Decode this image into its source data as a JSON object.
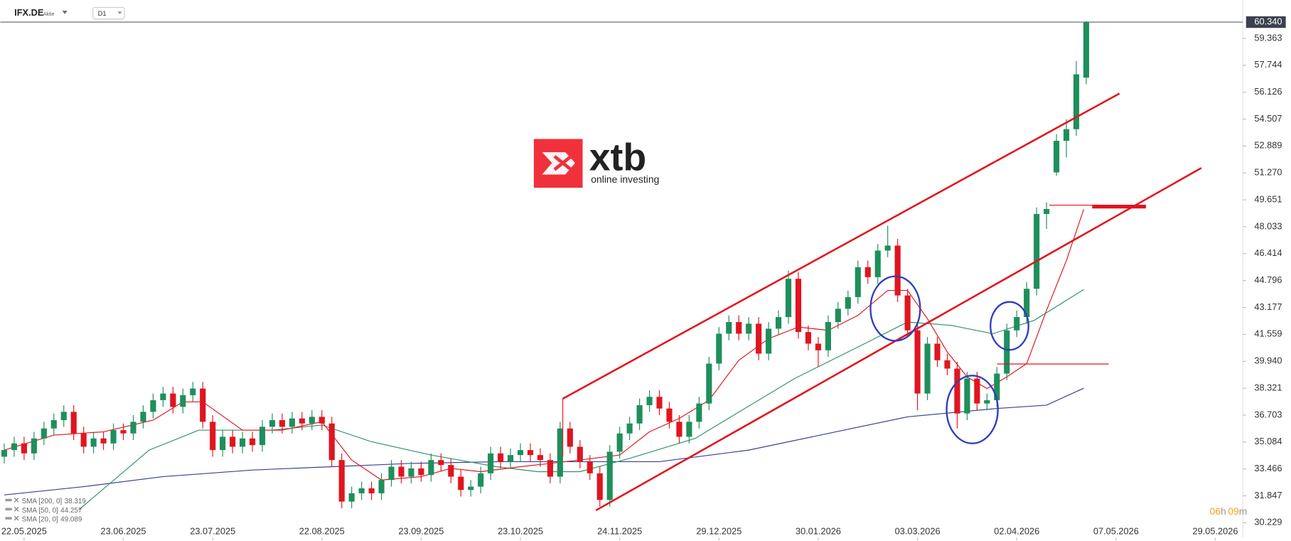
{
  "header": {
    "symbol": "IFX.DE",
    "asset_type": "Aktie",
    "interval": "D1"
  },
  "watermark": {
    "brand": "xtb",
    "tagline": "online investing"
  },
  "countdown": [
    "06",
    "h",
    "09",
    "m"
  ],
  "chart_data": {
    "type": "candlestick",
    "up_color": "#1e8f5c",
    "down_color": "#e0151f",
    "xlim": [
      -0.4,
      124.6
    ],
    "ylim": [
      29.33,
      61.67
    ],
    "xticks": [
      {
        "value": 2,
        "label": "22.05.2025"
      },
      {
        "value": 12,
        "label": "23.06.2025"
      },
      {
        "value": 21,
        "label": "23.07.2025"
      },
      {
        "value": 32,
        "label": "22.08.2025"
      },
      {
        "value": 42,
        "label": "23.09.2025"
      },
      {
        "value": 52,
        "label": "23.10.2025"
      },
      {
        "value": 62,
        "label": "24.11.2025"
      },
      {
        "value": 72,
        "label": "29.12.2025"
      },
      {
        "value": 82,
        "label": "30.01.2026"
      },
      {
        "value": 92,
        "label": "03.03.2026"
      },
      {
        "value": 102,
        "label": "02.04.2026"
      },
      {
        "value": 112,
        "label": "07.05.2026"
      },
      {
        "value": 122,
        "label": "29.05.2026"
      }
    ],
    "yticks": [
      30.229,
      31.847,
      33.466,
      35.084,
      36.703,
      38.321,
      {
        "value": 39.94,
        "label": "39.940"
      },
      41.559,
      43.177,
      44.796,
      46.414,
      48.033,
      49.651,
      {
        "value": 51.27,
        "label": "51.270"
      },
      52.889,
      54.507,
      56.126,
      57.744,
      59.363
    ],
    "last_price": {
      "value": 60.34,
      "label": "60.340"
    },
    "open": [
      34.2,
      34.6,
      35.0,
      34.4,
      35.3,
      35.9,
      36.4,
      36.9,
      35.6,
      34.8,
      35.3,
      35.0,
      35.8,
      35.6,
      36.3,
      36.9,
      37.6,
      38.0,
      37.2,
      37.9,
      38.3,
      36.3,
      34.6,
      35.4,
      34.8,
      35.3,
      34.9,
      36.0,
      36.4,
      36.0,
      36.5,
      36.2,
      36.6,
      36.2,
      34.0,
      31.5,
      32.0,
      32.3,
      32.0,
      32.8,
      33.6,
      33.0,
      33.5,
      33.1,
      34.0,
      33.7,
      33.0,
      32.2,
      32.4,
      33.2,
      34.4,
      33.9,
      34.3,
      34.6,
      34.3,
      34.0,
      33.0,
      35.9,
      34.8,
      33.9,
      33.2,
      31.6,
      34.5,
      35.6,
      36.2,
      37.3,
      37.8,
      37.1,
      36.3,
      35.4,
      36.3,
      37.4,
      39.8,
      41.6,
      42.3,
      41.6,
      42.2,
      40.4,
      41.9,
      42.6,
      44.9,
      41.7,
      41.0,
      40.6,
      42.3,
      43.1,
      43.8,
      45.6,
      45.0,
      46.6,
      46.9,
      43.9,
      41.8,
      38.0,
      41.0,
      40.0,
      39.5,
      36.8,
      38.9,
      37.4,
      37.6,
      39.2,
      41.8,
      42.6,
      44.3,
      48.8,
      51.3,
      53.2,
      53.9,
      57.0
    ],
    "high": [
      35.0,
      35.4,
      35.4,
      35.7,
      36.3,
      36.8,
      37.3,
      37.3,
      36.0,
      35.7,
      35.7,
      36.2,
      36.2,
      36.7,
      37.3,
      38.0,
      38.4,
      38.4,
      38.3,
      38.7,
      38.7,
      36.7,
      35.8,
      35.8,
      35.7,
      35.7,
      36.4,
      36.8,
      36.8,
      36.9,
      36.9,
      37.0,
      37.0,
      36.6,
      34.4,
      32.4,
      32.7,
      32.7,
      33.2,
      34.0,
      34.0,
      33.9,
      33.9,
      34.4,
      34.4,
      34.1,
      33.4,
      32.8,
      33.6,
      34.8,
      34.8,
      34.7,
      35.0,
      35.0,
      34.7,
      34.4,
      36.3,
      36.3,
      35.2,
      34.3,
      33.6,
      34.9,
      36.0,
      36.6,
      37.7,
      38.2,
      38.2,
      37.5,
      36.7,
      36.7,
      37.8,
      40.2,
      42.0,
      42.7,
      42.7,
      42.6,
      42.6,
      42.3,
      43.0,
      45.4,
      45.3,
      42.1,
      41.4,
      42.7,
      43.5,
      44.2,
      46.0,
      46.0,
      47.0,
      48.1,
      47.3,
      44.3,
      42.2,
      41.4,
      41.4,
      40.4,
      39.9,
      39.3,
      39.3,
      38.0,
      39.6,
      42.2,
      43.0,
      44.7,
      49.2,
      49.5,
      53.6,
      54.5,
      58.0,
      60.4
    ],
    "low": [
      33.8,
      34.2,
      34.0,
      34.0,
      34.9,
      35.5,
      36.0,
      35.2,
      34.4,
      34.4,
      34.6,
      34.6,
      35.2,
      35.2,
      35.9,
      36.5,
      37.2,
      36.8,
      36.8,
      37.5,
      35.9,
      34.2,
      34.2,
      34.4,
      34.4,
      34.5,
      34.5,
      35.6,
      35.6,
      35.6,
      35.8,
      35.8,
      35.8,
      33.6,
      31.1,
      31.1,
      31.6,
      31.6,
      31.6,
      32.4,
      32.6,
      32.6,
      32.7,
      32.7,
      33.3,
      32.6,
      31.8,
      31.8,
      32.0,
      32.8,
      33.5,
      33.5,
      33.9,
      33.9,
      33.6,
      32.6,
      32.6,
      34.4,
      33.5,
      32.8,
      31.2,
      31.2,
      34.1,
      35.2,
      35.8,
      36.9,
      36.7,
      35.9,
      35.0,
      35.0,
      35.9,
      37.0,
      39.4,
      41.2,
      41.2,
      41.2,
      40.0,
      40.0,
      41.5,
      42.2,
      41.3,
      40.6,
      39.6,
      40.2,
      41.9,
      42.7,
      43.4,
      44.6,
      44.6,
      46.2,
      43.5,
      41.4,
      37.0,
      37.6,
      39.6,
      39.1,
      35.9,
      36.4,
      37.0,
      37.0,
      37.2,
      38.8,
      41.4,
      42.2,
      43.9,
      47.9,
      51.1,
      52.2,
      53.5,
      56.6
    ],
    "close": [
      34.6,
      35.0,
      34.4,
      35.3,
      35.9,
      36.4,
      36.9,
      35.6,
      34.8,
      35.3,
      35.0,
      35.8,
      35.6,
      36.3,
      36.9,
      37.6,
      38.0,
      37.2,
      37.9,
      38.3,
      36.3,
      34.6,
      35.4,
      34.8,
      35.3,
      34.9,
      36.0,
      36.4,
      36.0,
      36.5,
      36.2,
      36.6,
      36.2,
      34.0,
      31.5,
      32.0,
      32.3,
      32.0,
      32.8,
      33.6,
      33.0,
      33.5,
      33.1,
      34.0,
      33.7,
      33.0,
      32.2,
      32.4,
      33.2,
      34.4,
      33.9,
      34.3,
      34.6,
      34.3,
      34.0,
      33.0,
      35.9,
      34.8,
      33.9,
      33.2,
      31.6,
      34.5,
      35.6,
      36.2,
      37.3,
      37.8,
      37.1,
      36.3,
      35.4,
      36.3,
      37.4,
      39.8,
      41.6,
      42.3,
      41.6,
      42.2,
      40.4,
      41.9,
      42.6,
      44.9,
      41.7,
      41.0,
      40.6,
      42.3,
      43.1,
      43.8,
      45.6,
      45.0,
      46.6,
      46.9,
      43.9,
      41.8,
      38.0,
      41.0,
      40.0,
      39.5,
      36.8,
      38.9,
      37.4,
      37.6,
      39.2,
      41.8,
      42.6,
      44.3,
      48.8,
      49.1,
      53.2,
      53.9,
      57.2,
      60.34
    ],
    "series": [
      {
        "name": "SMA [200, 0]",
        "last_value": 38.319,
        "color": "#3b3f96",
        "x": [
          0,
          8,
          16,
          25,
          33,
          41,
          50,
          58,
          66,
          75,
          83,
          91,
          100,
          105,
          108.75
        ],
        "values": [
          31.9,
          32.4,
          33.0,
          33.4,
          33.6,
          33.8,
          33.9,
          33.9,
          33.9,
          34.6,
          35.6,
          36.6,
          37.1,
          37.3,
          38.319
        ]
      },
      {
        "name": "SMA [50, 0]",
        "last_value": 44.257,
        "color": "#2e9468",
        "x": [
          7.5,
          14.6,
          19.6,
          27,
          32,
          37,
          43,
          49.6,
          53.75,
          58,
          63,
          69.6,
          74.6,
          79.6,
          86,
          91,
          95.4,
          99.6,
          103.75,
          108.75
        ],
        "values": [
          31.0,
          34.6,
          35.8,
          35.8,
          36.1,
          35.1,
          34.3,
          33.6,
          33.3,
          33.3,
          34.1,
          35.3,
          37.1,
          38.9,
          40.8,
          42.3,
          42.1,
          41.6,
          42.4,
          44.257
        ]
      },
      {
        "name": "SMA [20, 0]",
        "last_value": 49.089,
        "color": "#e0151f",
        "x": [
          0,
          5,
          10,
          15,
          18,
          20,
          24,
          28,
          32,
          35,
          38,
          42,
          45,
          48,
          52,
          55,
          58,
          62,
          65,
          68,
          71,
          74,
          77,
          80,
          83,
          86,
          89,
          91,
          93,
          95,
          97,
          99,
          101,
          103,
          105,
          107,
          108.75
        ],
        "values": [
          34.6,
          35.5,
          35.7,
          36.4,
          37.5,
          37.5,
          35.8,
          35.8,
          36.3,
          34.0,
          32.8,
          33.0,
          33.5,
          33.3,
          33.6,
          33.8,
          34.0,
          34.3,
          35.7,
          36.5,
          37.6,
          40.0,
          41.3,
          42.0,
          41.8,
          42.7,
          44.2,
          44.2,
          42.5,
          40.5,
          39.0,
          38.3,
          39.0,
          39.8,
          43.0,
          46.0,
          49.089
        ]
      }
    ]
  }
}
